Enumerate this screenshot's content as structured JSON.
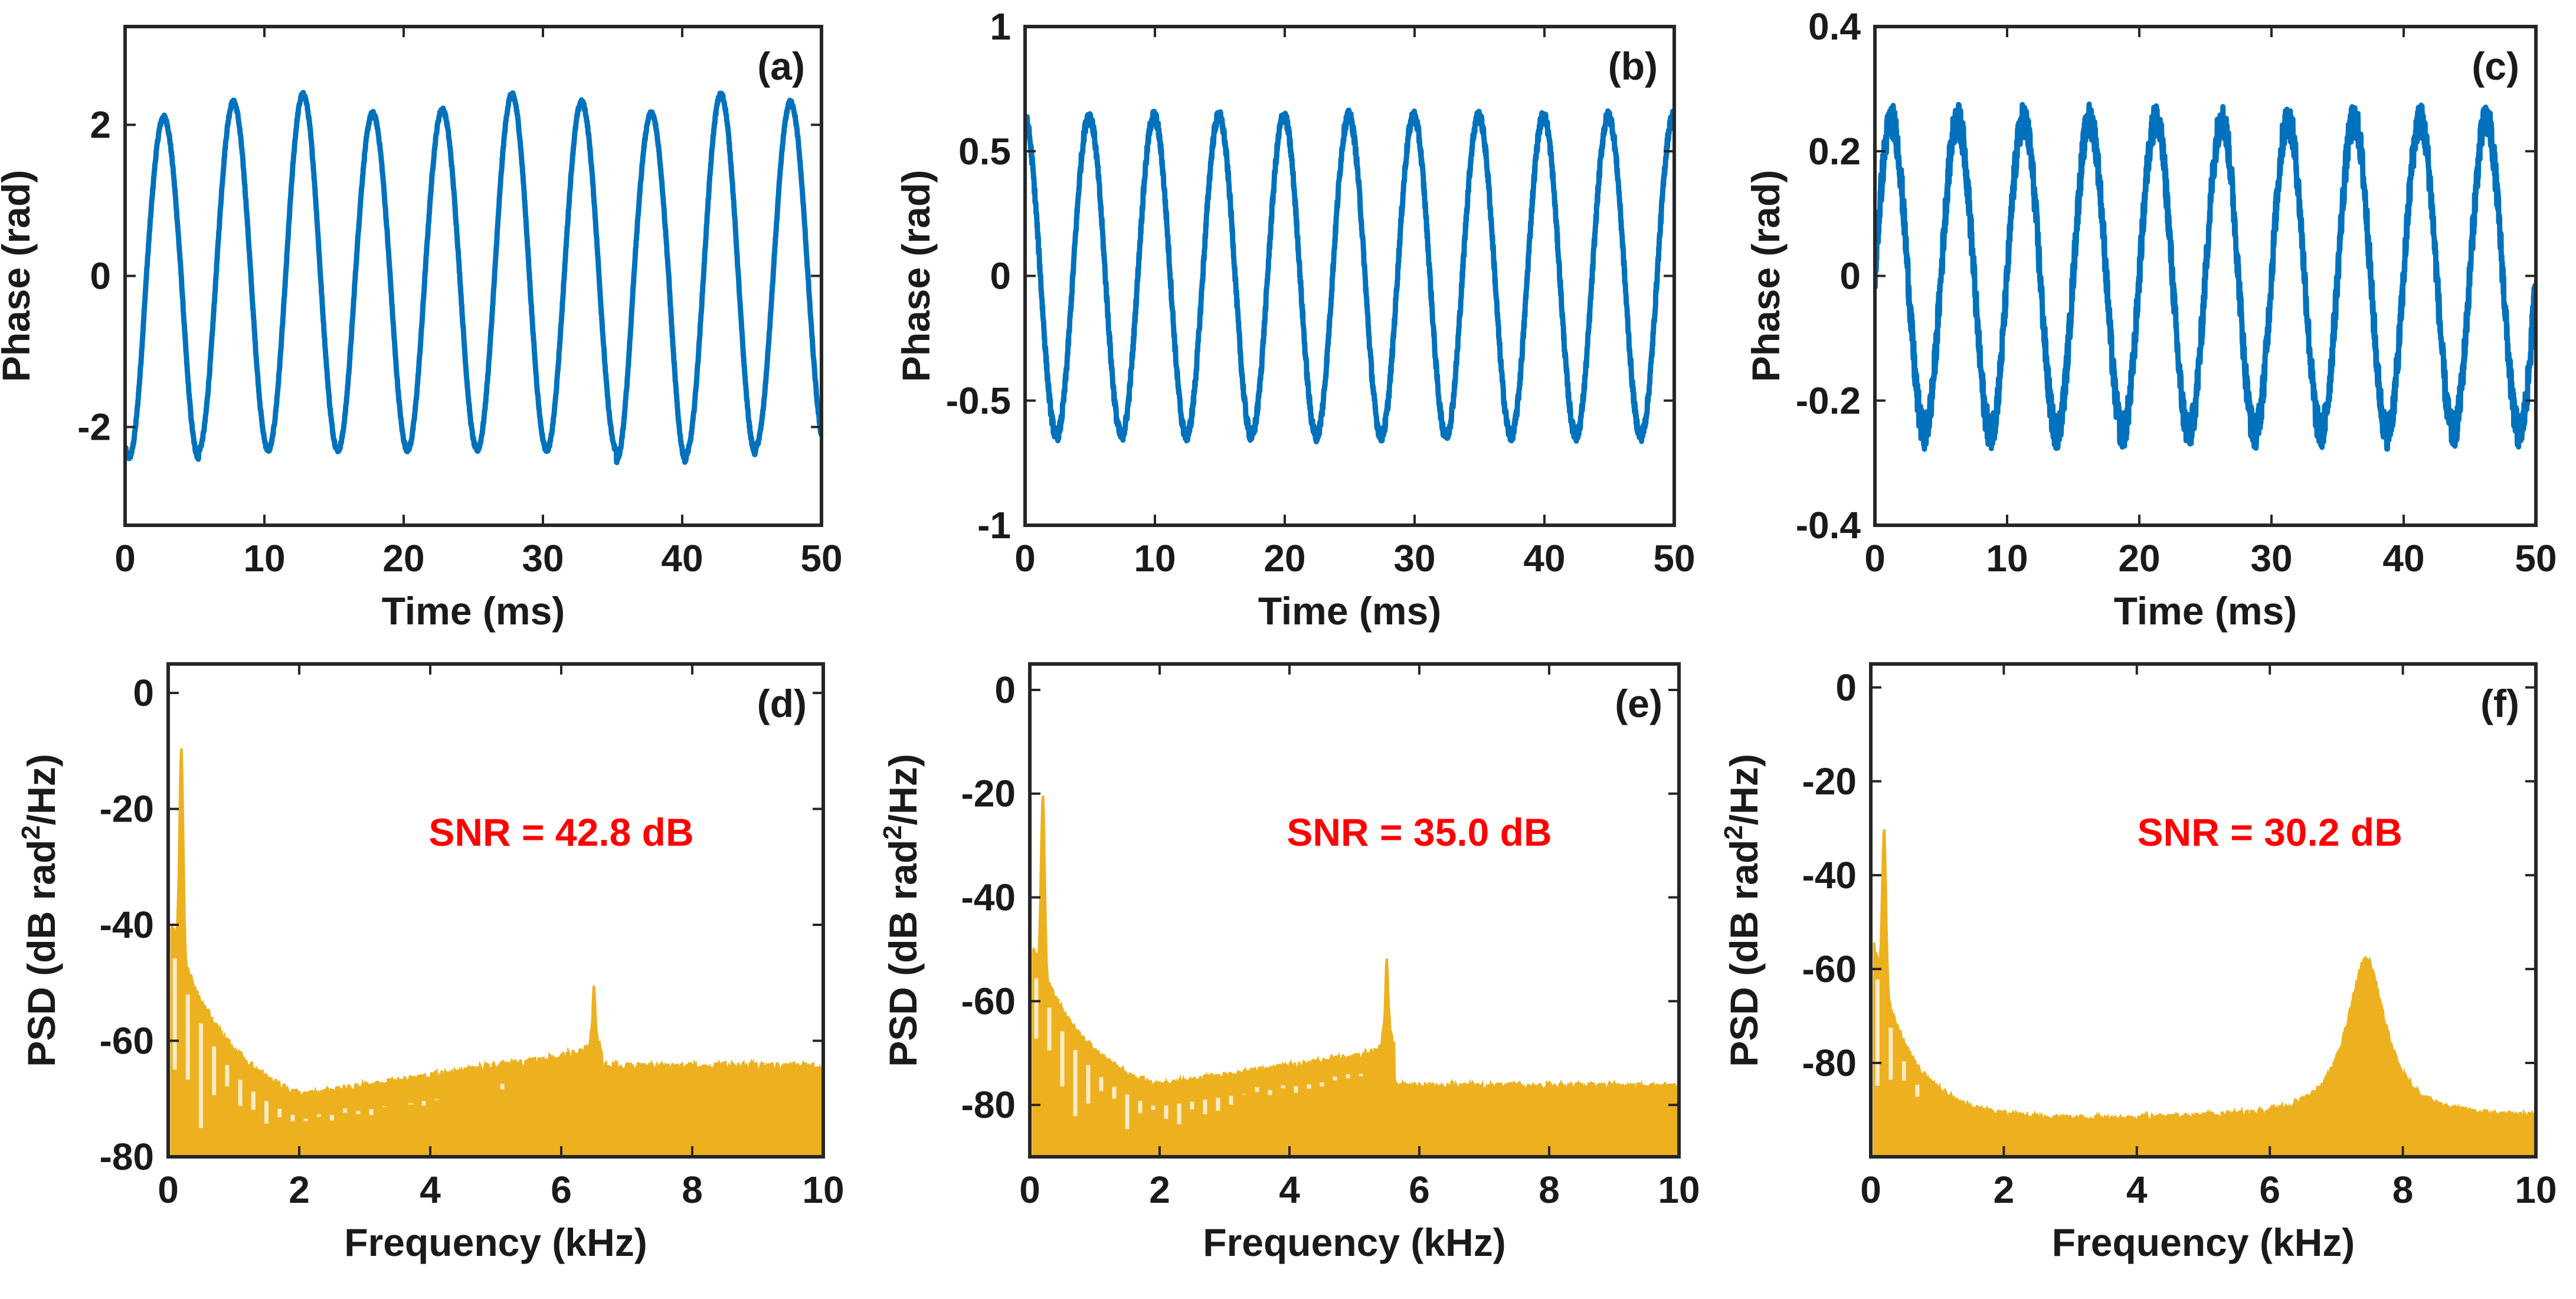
{
  "figure": {
    "colors": {
      "phase": "#0072BD",
      "psd": "#EDB120",
      "axis": "#262626",
      "snr": "#FF0000"
    }
  },
  "chart_data": [
    {
      "id": "a",
      "type": "line",
      "panel_label": "(a)",
      "xlabel": "Time (ms)",
      "ylabel": "Phase (rad)",
      "xlim": [
        0,
        50
      ],
      "ylim": [
        -3.3,
        3.3
      ],
      "xticks": [
        0,
        10,
        20,
        30,
        40,
        50
      ],
      "xtick_labels": [
        "0",
        "10",
        "20",
        "30",
        "40",
        "50"
      ],
      "yticks": [
        -2,
        0,
        2
      ],
      "ytick_labels": [
        "-2",
        "0",
        "2"
      ],
      "series": [
        {
          "name": "phase",
          "color": "#0072BD",
          "signal": {
            "frequency_khz": 0.2,
            "amplitude_rad": 2.25,
            "phase_offset_deg": -110,
            "noise_rad": 0.03,
            "peak_amplitudes_rad": [
              2.1,
              2.3,
              2.4,
              2.15,
              2.2,
              2.4,
              2.3,
              2.15,
              2.4,
              2.3
            ],
            "trough_amplitudes_rad": [
              2.4,
              2.3,
              2.3,
              2.3,
              2.3,
              2.3,
              2.3,
              2.45,
              2.35,
              2.25
            ]
          }
        }
      ]
    },
    {
      "id": "b",
      "type": "line",
      "panel_label": "(b)",
      "xlabel": "Time (ms)",
      "ylabel": "Phase (rad)",
      "xlim": [
        0,
        50
      ],
      "ylim": [
        -1,
        1
      ],
      "xticks": [
        0,
        10,
        20,
        30,
        40,
        50
      ],
      "xtick_labels": [
        "0",
        "10",
        "20",
        "30",
        "40",
        "50"
      ],
      "yticks": [
        -1,
        -0.5,
        0,
        0.5,
        1
      ],
      "ytick_labels": [
        "-1",
        "-0.5",
        "0",
        "0.5",
        "1"
      ],
      "series": [
        {
          "name": "phase",
          "color": "#0072BD",
          "signal": {
            "frequency_khz": 0.2,
            "amplitude_rad": 0.64,
            "phase_offset_deg": 95,
            "noise_rad": 0.025
          }
        }
      ]
    },
    {
      "id": "c",
      "type": "line",
      "panel_label": "(c)",
      "xlabel": "Time (ms)",
      "ylabel": "Phase (rad)",
      "xlim": [
        0,
        50
      ],
      "ylim": [
        -0.4,
        0.4
      ],
      "xticks": [
        0,
        10,
        20,
        30,
        40,
        50
      ],
      "xtick_labels": [
        "0",
        "10",
        "20",
        "30",
        "40",
        "50"
      ],
      "yticks": [
        -0.4,
        -0.2,
        0,
        0.2,
        0.4
      ],
      "ytick_labels": [
        "-0.4",
        "-0.2",
        "0",
        "0.2",
        "0.4"
      ],
      "series": [
        {
          "name": "phase",
          "color": "#0072BD",
          "signal": {
            "frequency_khz": 0.2,
            "amplitude_rad": 0.25,
            "phase_offset_deg": 0,
            "noise_rad": 0.028
          }
        }
      ]
    },
    {
      "id": "d",
      "type": "line",
      "panel_label": "(d)",
      "xlabel": "Frequency (kHz)",
      "ylabel": "PSD (dB rad²/Hz)",
      "ylabel_parts": [
        "PSD (dB rad",
        "2",
        "/Hz)"
      ],
      "annotation": "SNR = 42.8 dB",
      "xlim": [
        0,
        10
      ],
      "ylim": [
        -80,
        5
      ],
      "xticks": [
        0,
        2,
        4,
        6,
        8,
        10
      ],
      "xtick_labels": [
        "0",
        "2",
        "4",
        "6",
        "8",
        "10"
      ],
      "yticks": [
        -80,
        -60,
        -40,
        -20,
        0
      ],
      "ytick_labels": [
        "-80",
        "-60",
        "-40",
        "-20",
        "0"
      ],
      "series": [
        {
          "name": "psd",
          "color": "#EDB120",
          "signal": {
            "peak_khz": 0.2,
            "peak_db": -9,
            "start_db": -40,
            "floor_db": -73,
            "floor_end_khz": 6.5,
            "floor_end_db": -62,
            "cutoff_khz": 6.5,
            "cutoff_peak_db": -51,
            "tail_db": -64.5,
            "tail_low_db": -80,
            "low_tail_db": -80
          }
        }
      ]
    },
    {
      "id": "e",
      "type": "line",
      "panel_label": "(e)",
      "xlabel": "Frequency (kHz)",
      "ylabel": "PSD (dB rad²/Hz)",
      "ylabel_parts": [
        "PSD (dB rad",
        "2",
        "/Hz)"
      ],
      "annotation": "SNR = 35.0 dB",
      "xlim": [
        0,
        10
      ],
      "ylim": [
        -90,
        5
      ],
      "xticks": [
        0,
        2,
        4,
        6,
        8,
        10
      ],
      "xtick_labels": [
        "0",
        "2",
        "4",
        "6",
        "8",
        "10"
      ],
      "yticks": [
        -80,
        -60,
        -40,
        -20,
        0
      ],
      "ytick_labels": [
        "-80",
        "-60",
        "-40",
        "-20",
        "0"
      ],
      "series": [
        {
          "name": "psd",
          "color": "#EDB120",
          "signal": {
            "peak_khz": 0.2,
            "peak_db": -20,
            "start_db": -50,
            "floor_db": -80,
            "floor_end_khz": 5.4,
            "floor_end_db": -70,
            "cutoff_khz": 5.5,
            "cutoff_peak_db": -52,
            "tail_db": -76.5,
            "tail_low_db": -90,
            "low_tail_db": -90
          }
        }
      ]
    },
    {
      "id": "f",
      "type": "line",
      "panel_label": "(f)",
      "xlabel": "Frequency (kHz)",
      "ylabel": "PSD (dB rad²/Hz)",
      "ylabel_parts": [
        "PSD (dB rad",
        "2",
        "/Hz)"
      ],
      "annotation": "SNR = 30.2 dB",
      "xlim": [
        0,
        10
      ],
      "ylim": [
        -100,
        5
      ],
      "xticks": [
        0,
        2,
        4,
        6,
        8,
        10
      ],
      "xtick_labels": [
        "0",
        "2",
        "4",
        "6",
        "8",
        "10"
      ],
      "yticks": [
        -80,
        -60,
        -40,
        -20,
        0
      ],
      "ytick_labels": [
        "-80",
        "-60",
        "-40",
        "-20",
        "0"
      ],
      "series": [
        {
          "name": "psd",
          "color": "#EDB120",
          "signal": {
            "peak_khz": 0.2,
            "peak_db": -30,
            "start_db": -55,
            "floor_db": -92,
            "resonance_khz": 7.45,
            "resonance_db": -58,
            "end_db": -93,
            "low_tail_db": -100
          }
        }
      ]
    }
  ]
}
